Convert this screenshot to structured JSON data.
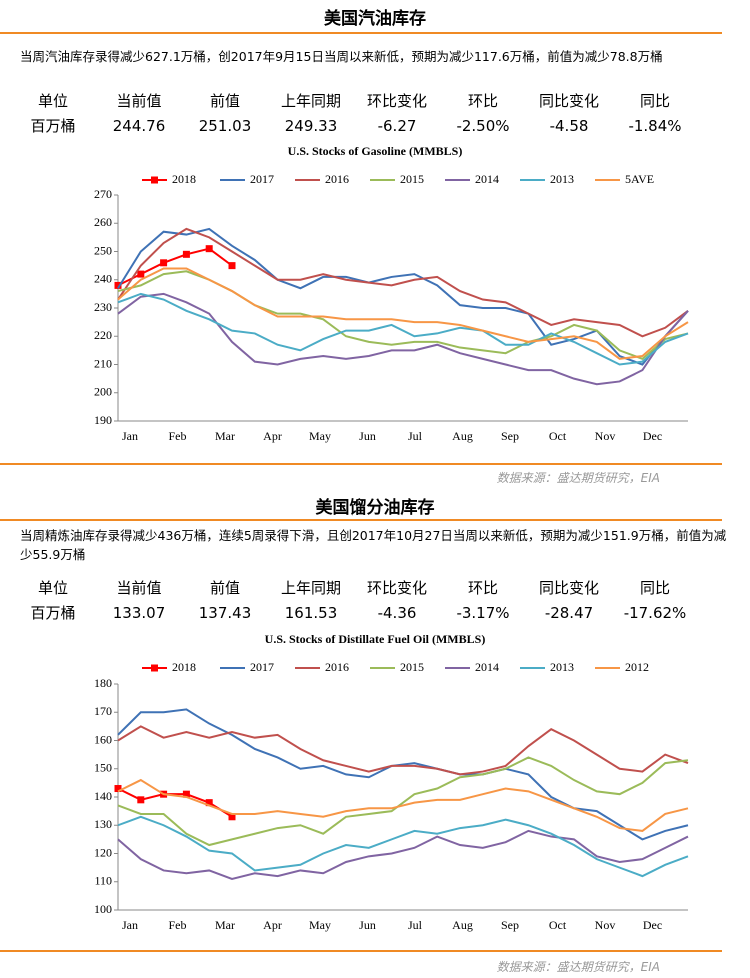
{
  "sections": [
    {
      "title": "美国汽油库存",
      "text": "当周汽油库存录得减少627.1万桶，创2017年9月15日当周以来新低，预期为减少117.6万桶，前值为减少78.8万桶",
      "table": {
        "header": [
          "单位",
          "当前值",
          "前值",
          "上年同期",
          "环比变化",
          "环比",
          "同比变化",
          "同比"
        ],
        "row": [
          "百万桶",
          "244.76",
          "251.03",
          "249.33",
          "-6.27",
          "-2.50%",
          "-4.58",
          "-1.84%"
        ]
      },
      "chart_data": {
        "type": "line",
        "title": "U.S.  Stocks of  Gasoline (MMBLS)",
        "xticklabels": [
          "Jan",
          "Feb",
          "Mar",
          "Apr",
          "May",
          "Jun",
          "Jul",
          "Aug",
          "Sep",
          "Oct",
          "Nov",
          "Dec"
        ],
        "ylim": [
          190,
          270
        ],
        "yticks": [
          190,
          200,
          210,
          220,
          230,
          240,
          250,
          260,
          270
        ],
        "series": [
          {
            "name": "2018",
            "color": "#ff0000",
            "marker": "square",
            "values": [
              238,
              242,
              246,
              249,
              251,
              245,
              null,
              null,
              null,
              null,
              null,
              null,
              null,
              null,
              null,
              null,
              null,
              null,
              null,
              null,
              null,
              null,
              null,
              null,
              null,
              null
            ]
          },
          {
            "name": "2017",
            "color": "#3f72b5",
            "values": [
              237,
              250,
              257,
              256,
              258,
              252,
              247,
              240,
              237,
              241,
              241,
              239,
              241,
              242,
              238,
              231,
              230,
              230,
              228,
              217,
              219,
              222,
              213,
              210,
              220,
              229
            ]
          },
          {
            "name": "2016",
            "color": "#c0504d",
            "values": [
              233,
              245,
              253,
              258,
              255,
              250,
              245,
              240,
              240,
              242,
              240,
              239,
              238,
              240,
              241,
              236,
              233,
              232,
              228,
              224,
              226,
              225,
              224,
              220,
              223,
              229
            ]
          },
          {
            "name": "2015",
            "color": "#9bbb59",
            "values": [
              236,
              238,
              242,
              243,
              240,
              236,
              231,
              228,
              228,
              226,
              220,
              218,
              217,
              218,
              218,
              216,
              215,
              214,
              218,
              220,
              224,
              222,
              215,
              212,
              219,
              221
            ]
          },
          {
            "name": "2014",
            "color": "#8064a2",
            "values": [
              228,
              234,
              235,
              232,
              228,
              218,
              211,
              210,
              212,
              213,
              212,
              213,
              215,
              215,
              217,
              214,
              212,
              210,
              208,
              208,
              205,
              203,
              204,
              208,
              220,
              229
            ]
          },
          {
            "name": "2013",
            "color": "#4bacc6",
            "values": [
              232,
              235,
              233,
              229,
              226,
              222,
              221,
              217,
              215,
              219,
              222,
              222,
              224,
              220,
              221,
              223,
              222,
              217,
              217,
              221,
              218,
              214,
              210,
              211,
              218,
              221
            ]
          },
          {
            "name": "5AVE",
            "color": "#f79646",
            "values": [
              233,
              240,
              244,
              244,
              240,
              236,
              231,
              227,
              227,
              227,
              226,
              226,
              226,
              225,
              225,
              224,
              222,
              220,
              218,
              219,
              220,
              218,
              212,
              213,
              220,
              225
            ]
          }
        ]
      },
      "source": "数据来源：盛达期货研究，EIA"
    },
    {
      "title": "美国馏分油库存",
      "text": "当周精炼油库存录得减少436万桶，连续5周录得下滑，且创2017年10月27日当周以来新低，预期为减少151.9万桶，前值为减少55.9万桶",
      "table": {
        "header": [
          "单位",
          "当前值",
          "前值",
          "上年同期",
          "环比变化",
          "环比",
          "同比变化",
          "同比"
        ],
        "row": [
          "百万桶",
          "133.07",
          "137.43",
          "161.53",
          "-4.36",
          "-3.17%",
          "-28.47",
          "-17.62%"
        ]
      },
      "chart_data": {
        "type": "line",
        "title": "U.S.  Stocks of Distillate Fuel Oil (MMBLS)",
        "xticklabels": [
          "Jan",
          "Feb",
          "Mar",
          "Apr",
          "May",
          "Jun",
          "Jul",
          "Aug",
          "Sep",
          "Oct",
          "Nov",
          "Dec"
        ],
        "ylim": [
          100,
          180
        ],
        "yticks": [
          100,
          110,
          120,
          130,
          140,
          150,
          160,
          170,
          180
        ],
        "series": [
          {
            "name": "2018",
            "color": "#ff0000",
            "marker": "square",
            "values": [
              143,
              139,
              141,
              141,
              138,
              133,
              null,
              null,
              null,
              null,
              null,
              null,
              null,
              null,
              null,
              null,
              null,
              null,
              null,
              null,
              null,
              null,
              null,
              null,
              null,
              null
            ]
          },
          {
            "name": "2017",
            "color": "#3f72b5",
            "values": [
              162,
              170,
              170,
              171,
              166,
              162,
              157,
              154,
              150,
              151,
              148,
              147,
              151,
              152,
              150,
              148,
              148,
              150,
              148,
              140,
              136,
              135,
              130,
              125,
              128,
              130
            ]
          },
          {
            "name": "2016",
            "color": "#c0504d",
            "values": [
              160,
              165,
              161,
              163,
              161,
              163,
              161,
              162,
              157,
              153,
              151,
              149,
              151,
              151,
              150,
              148,
              149,
              151,
              158,
              164,
              160,
              155,
              150,
              149,
              155,
              152
            ]
          },
          {
            "name": "2015",
            "color": "#9bbb59",
            "values": [
              137,
              134,
              134,
              127,
              123,
              125,
              127,
              129,
              130,
              127,
              133,
              134,
              135,
              141,
              143,
              147,
              148,
              150,
              154,
              151,
              146,
              142,
              141,
              145,
              152,
              153
            ]
          },
          {
            "name": "2014",
            "color": "#8064a2",
            "values": [
              125,
              118,
              114,
              113,
              114,
              111,
              113,
              112,
              114,
              113,
              117,
              119,
              120,
              122,
              126,
              123,
              122,
              124,
              128,
              126,
              125,
              119,
              117,
              118,
              122,
              126
            ]
          },
          {
            "name": "2013",
            "color": "#4bacc6",
            "values": [
              130,
              133,
              130,
              126,
              121,
              120,
              114,
              115,
              116,
              120,
              123,
              122,
              125,
              128,
              127,
              129,
              130,
              132,
              130,
              127,
              123,
              118,
              115,
              112,
              116,
              119
            ]
          },
          {
            "name": "2012",
            "color": "#f79646",
            "values": [
              142,
              146,
              141,
              140,
              137,
              134,
              134,
              135,
              134,
              133,
              135,
              136,
              136,
              138,
              139,
              139,
              141,
              143,
              142,
              139,
              136,
              133,
              129,
              128,
              134,
              136
            ]
          }
        ]
      },
      "source": "数据来源：盛达期货研究，EIA"
    }
  ]
}
